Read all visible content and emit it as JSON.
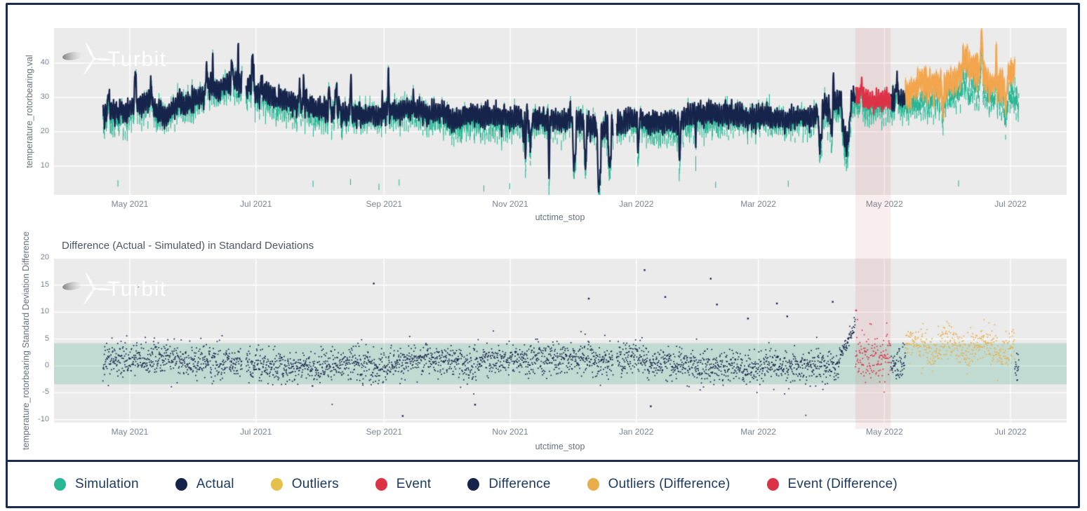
{
  "watermark": {
    "text": "Turbit"
  },
  "colors": {
    "frame_border": "#1c2b4e",
    "plot_background": "#ebebeb",
    "grid": "#ffffff",
    "tick_label": "#7a8593",
    "axis_title": "#67727f",
    "chart_title": "#4c5866",
    "legend_text": "#1d3a63",
    "simulation": "#29b795",
    "actual": "#16234a",
    "outliers_line": "#f3a64e",
    "event": "#dc3246",
    "difference": "#16234a",
    "outliers_difference": "#e8ad4c",
    "event_band": "rgba(206,112,124,0.15)",
    "normal_band": "rgba(86,180,150,0.28)"
  },
  "legend": {
    "items": [
      {
        "label": "Simulation",
        "color": "#29b795"
      },
      {
        "label": "Actual",
        "color": "#16234a"
      },
      {
        "label": "Outliers",
        "color": "#e4c04c"
      },
      {
        "label": "Event",
        "color": "#dc3246"
      },
      {
        "label": "Difference",
        "color": "#16234a"
      },
      {
        "label": "Outliers (Difference)",
        "color": "#e8ad4c"
      },
      {
        "label": "Event (Difference)",
        "color": "#dc3246"
      }
    ]
  },
  "chart_data": [
    {
      "type": "scatter",
      "title": "",
      "xlabel": "utctime_stop",
      "ylabel": "temperature_rotorbearing.val",
      "x_ticks": [
        {
          "day": 13,
          "label": "May 2021"
        },
        {
          "day": 74,
          "label": "Jul 2021"
        },
        {
          "day": 136,
          "label": "Sep 2021"
        },
        {
          "day": 197,
          "label": "Nov 2021"
        },
        {
          "day": 258,
          "label": "Jan 2022"
        },
        {
          "day": 317,
          "label": "Mar 2022"
        },
        {
          "day": 378,
          "label": "May 2022"
        },
        {
          "day": 439,
          "label": "Jul 2022"
        }
      ],
      "y_ticks": [
        10,
        20,
        30,
        40
      ],
      "ylim": [
        1.5,
        50.2
      ],
      "x_span_days": [
        0,
        443
      ],
      "grid": true,
      "legend_position": "bottom",
      "series": [
        {
          "name": "Simulation",
          "color": "#29b795",
          "style": "markers_with_error_bars",
          "window_days": [
            0,
            441
          ],
          "typical_range": [
            15,
            38
          ]
        },
        {
          "name": "Actual",
          "color": "#16234a",
          "style": "line",
          "window_days": [
            0,
            364
          ],
          "typical_range": [
            18,
            40
          ],
          "summer_peak_max": 44,
          "winter_dip_min": 4
        },
        {
          "name": "Event",
          "color": "#dc3246",
          "style": "line",
          "window_days": [
            364,
            381
          ],
          "mean": 28,
          "typical_range": [
            22,
            35
          ]
        },
        {
          "name": "Outliers",
          "color": "#f3a64e",
          "style": "line",
          "window_days": [
            388,
            441
          ],
          "offset_above_simulation": [
            4,
            10
          ],
          "max": 47
        }
      ],
      "event_band_days": [
        364,
        381
      ],
      "baseline_keypoints": {
        "days": [
          0,
          10,
          20,
          30,
          42,
          55,
          63,
          70,
          78,
          90,
          105,
          120,
          136,
          150,
          165,
          180,
          197,
          210,
          225,
          240,
          258,
          275,
          290,
          305,
          317,
          330,
          342,
          356,
          364,
          381,
          388,
          400,
          415,
          430,
          441
        ],
        "values": [
          25,
          27,
          28,
          26,
          29,
          31,
          34,
          31,
          31,
          30,
          29,
          28,
          28,
          29,
          27,
          26,
          25,
          26,
          25,
          24,
          25,
          24,
          25,
          23,
          24,
          23,
          24,
          26,
          28,
          28,
          28,
          28,
          29,
          30,
          31
        ]
      },
      "diurnal_amplitude": 2.0,
      "noise_sd": 0.9,
      "sim_offset_below_actual": [
        0.5,
        3
      ],
      "pre_event_dip_days": [
        357,
        362
      ],
      "gaps_days": [
        [
          67.3,
          69.2
        ],
        [
          246.8,
          248.4
        ]
      ]
    },
    {
      "type": "scatter",
      "title": "Difference (Actual - Simulated) in Standard Deviations",
      "xlabel": "utctime_stop",
      "ylabel": "temperature_rotorbearing Standard Deviation Difference",
      "x_ticks": [
        {
          "day": 13,
          "label": "May 2021"
        },
        {
          "day": 74,
          "label": "Jul 2021"
        },
        {
          "day": 136,
          "label": "Sep 2021"
        },
        {
          "day": 197,
          "label": "Nov 2021"
        },
        {
          "day": 258,
          "label": "Jan 2022"
        },
        {
          "day": 317,
          "label": "Mar 2022"
        },
        {
          "day": 378,
          "label": "May 2022"
        },
        {
          "day": 439,
          "label": "Jul 2022"
        }
      ],
      "y_ticks": [
        -10,
        -5,
        0,
        5,
        10,
        15,
        20
      ],
      "ylim": [
        -10.8,
        20.5
      ],
      "normal_band": {
        "from": -3.4,
        "to": 4.2
      },
      "event_band_days": [
        364,
        381
      ],
      "series": [
        {
          "name": "Difference",
          "color": "#16234a",
          "window_days": [
            0,
            364
          ],
          "mean": 0.6,
          "sd": 1.5,
          "typical_range": [
            -4,
            5
          ]
        },
        {
          "name": "Event (Difference)",
          "color": "#dc3246",
          "window_days": [
            364,
            381
          ],
          "mean": 1.7,
          "sd": 2.2,
          "max_spike": 10.3
        },
        {
          "name": "Outliers (Difference)",
          "color": "#e8ad4c",
          "window_days": [
            388,
            441
          ],
          "mean": 3.5,
          "sd": 1.7,
          "typical_range": [
            -3,
            9
          ]
        }
      ],
      "pre_event_ramp_days": [
        356,
        364
      ],
      "spikes": [
        [
          17,
          14.8
        ],
        [
          131,
          15.3
        ],
        [
          235,
          12.5
        ],
        [
          262,
          17.8
        ],
        [
          272,
          12.8
        ],
        [
          294,
          16.2
        ],
        [
          297,
          11.4
        ],
        [
          312,
          8.8
        ],
        [
          326,
          11.6
        ],
        [
          331,
          9.2
        ],
        [
          353,
          11.9
        ],
        [
          145,
          -9.3
        ],
        [
          180,
          -7.2
        ],
        [
          265,
          -7.5
        ],
        [
          364.3,
          10.3
        ]
      ],
      "gaps_days": [
        [
          67.3,
          69.2
        ],
        [
          246.8,
          248.4
        ]
      ]
    }
  ]
}
